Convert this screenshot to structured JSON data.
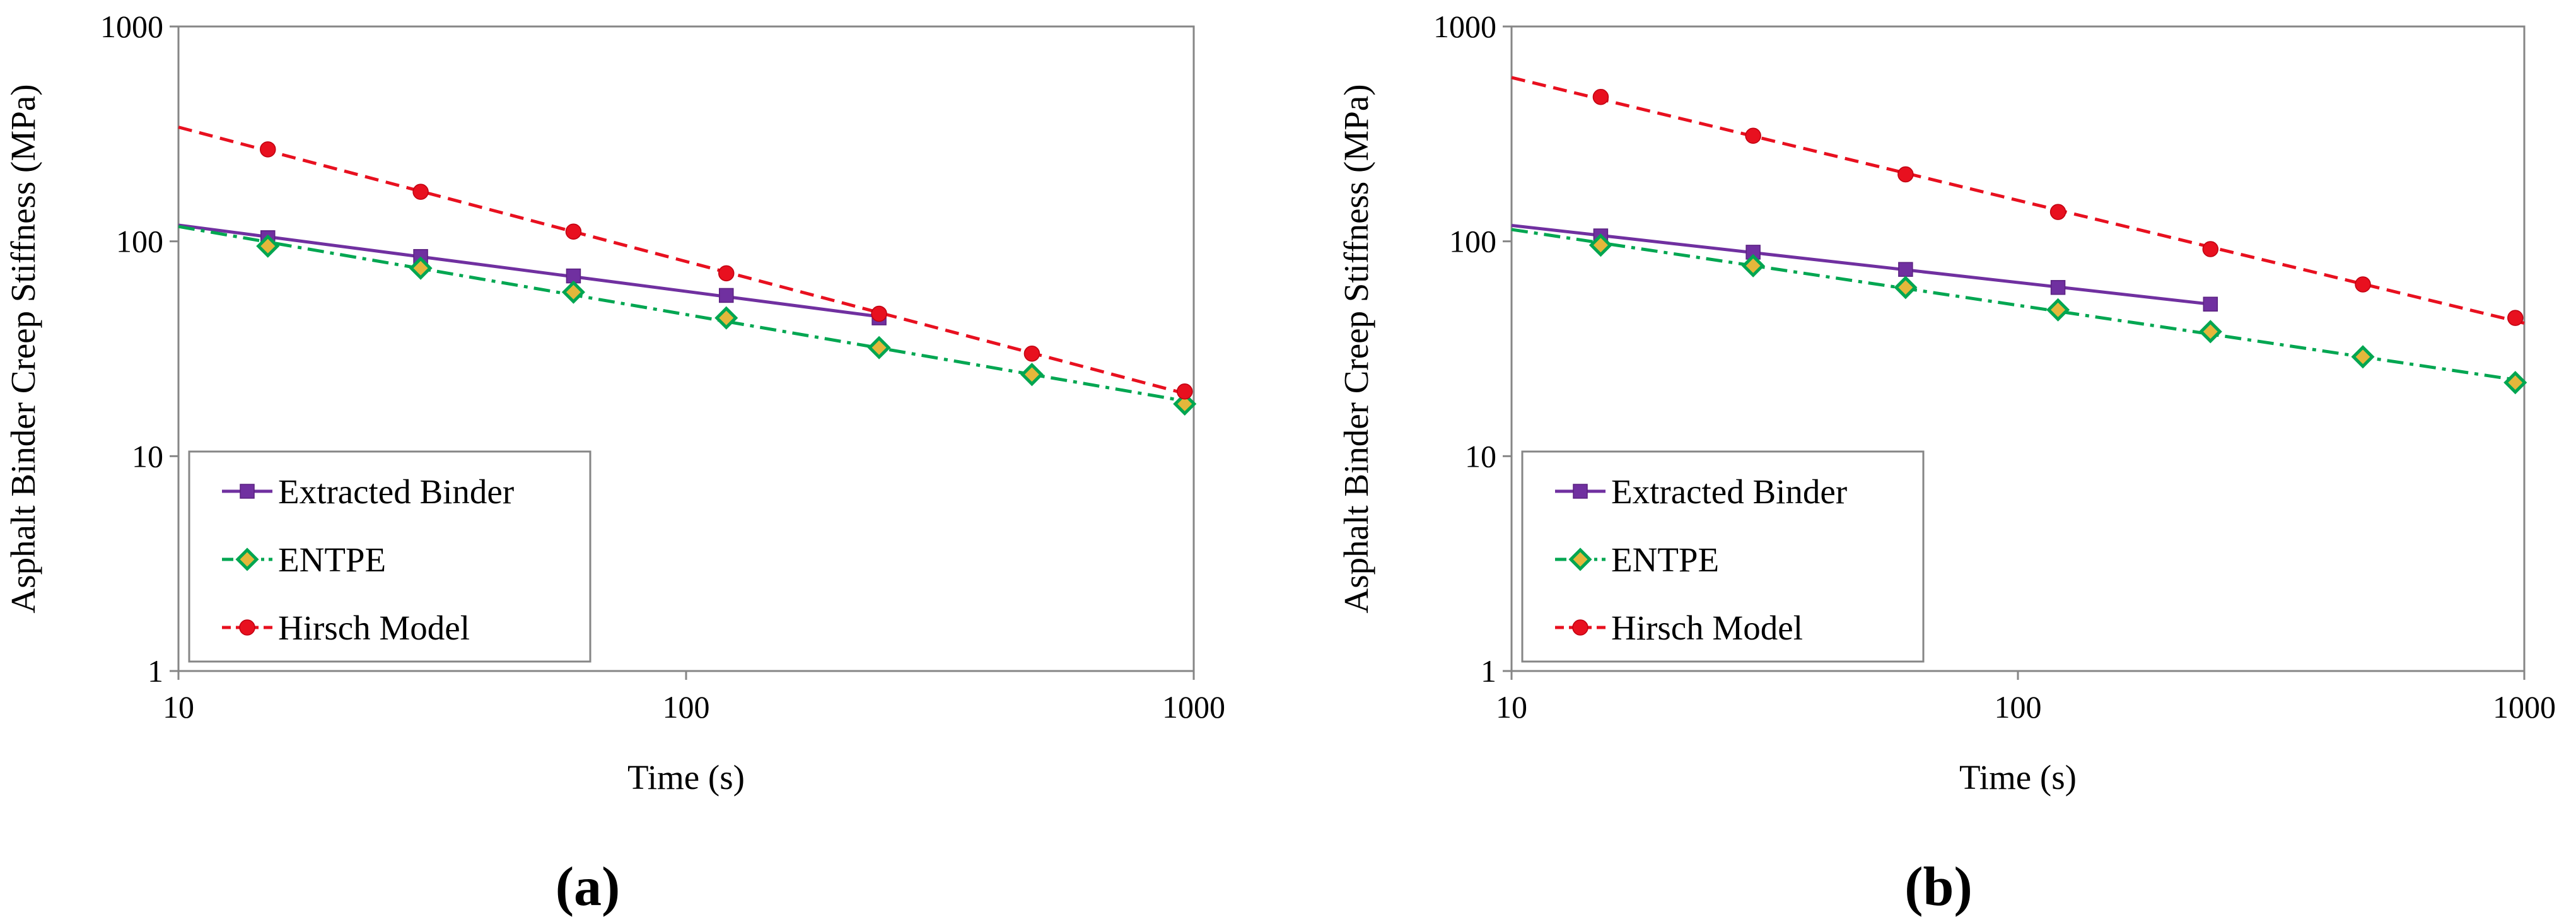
{
  "chart_data": [
    {
      "type": "line",
      "panel_label": "a",
      "panel_label_text": "(a)",
      "xscale": "log",
      "yscale": "log",
      "xlim": [
        10,
        1000
      ],
      "ylim": [
        1,
        1000
      ],
      "xlabel": "Time (s)",
      "ylabel": "Asphalt Binder Creep Stiffness (MPa)",
      "xticks": [
        10,
        100,
        1000
      ],
      "xtick_labels": [
        "10",
        "100",
        "1000"
      ],
      "yticks": [
        1,
        10,
        100,
        1000
      ],
      "ytick_labels": [
        "1",
        "10",
        "100",
        "1000"
      ],
      "legend_position": "bottom-left",
      "series": [
        {
          "name": "Extracted Binder",
          "color": "#7030A0",
          "marker": "square",
          "line_style": "solid",
          "x": [
            15,
            30,
            60,
            120,
            240
          ],
          "y": [
            104,
            85,
            69,
            56,
            44
          ],
          "line_x": [
            10,
            240
          ]
        },
        {
          "name": "ENTPE",
          "color": "#00A651",
          "marker_fill": "#E4B73B",
          "marker": "diamond",
          "line_style": "dashdot",
          "x": [
            15,
            30,
            60,
            120,
            240,
            480,
            960
          ],
          "y": [
            95,
            75,
            58,
            44,
            32,
            24,
            17.5
          ],
          "line_x": [
            10,
            1000
          ]
        },
        {
          "name": "Hirsch Model",
          "color": "#E8101F",
          "marker": "circle",
          "line_style": "dashed",
          "x": [
            15,
            30,
            60,
            120,
            240,
            480,
            960
          ],
          "y": [
            268,
            170,
            111,
            71,
            46,
            30,
            20
          ],
          "line_x": [
            10,
            1000
          ]
        }
      ]
    },
    {
      "type": "line",
      "panel_label": "b",
      "panel_label_text": "(b)",
      "xscale": "log",
      "yscale": "log",
      "xlim": [
        10,
        1000
      ],
      "ylim": [
        1,
        1000
      ],
      "xlabel": "Time (s)",
      "ylabel": "Asphalt Binder Creep Stiffness (MPa)",
      "xticks": [
        10,
        100,
        1000
      ],
      "xtick_labels": [
        "10",
        "100",
        "1000"
      ],
      "yticks": [
        1,
        10,
        100,
        1000
      ],
      "ytick_labels": [
        "1",
        "10",
        "100",
        "1000"
      ],
      "legend_position": "bottom-left",
      "series": [
        {
          "name": "Extracted Binder",
          "color": "#7030A0",
          "marker": "square",
          "line_style": "solid",
          "x": [
            15,
            30,
            60,
            120,
            240
          ],
          "y": [
            106,
            89,
            74,
            61,
            51
          ],
          "line_x": [
            10,
            240
          ]
        },
        {
          "name": "ENTPE",
          "color": "#00A651",
          "marker_fill": "#E4B73B",
          "marker": "diamond",
          "line_style": "dashdot",
          "x": [
            15,
            30,
            60,
            120,
            240,
            480,
            960
          ],
          "y": [
            96,
            77,
            61,
            48,
            38,
            29,
            22
          ],
          "line_x": [
            10,
            1000
          ]
        },
        {
          "name": "Hirsch Model",
          "color": "#E8101F",
          "marker": "circle",
          "line_style": "dashed",
          "x": [
            15,
            30,
            60,
            120,
            240,
            480,
            960
          ],
          "y": [
            470,
            310,
            205,
            137,
            92,
            63,
            44
          ],
          "line_x": [
            10,
            1000
          ]
        }
      ]
    }
  ]
}
